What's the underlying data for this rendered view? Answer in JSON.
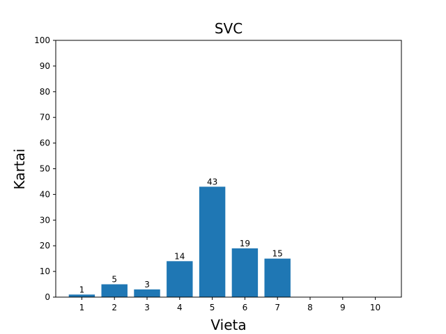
{
  "chart_data": {
    "type": "bar",
    "title": "SVC",
    "xlabel": "Vieta",
    "ylabel": "Kartai",
    "categories": [
      "1",
      "2",
      "3",
      "4",
      "5",
      "6",
      "7",
      "8",
      "9",
      "10"
    ],
    "values": [
      1,
      5,
      3,
      14,
      43,
      19,
      15,
      0,
      0,
      0
    ],
    "data_labels": [
      "1",
      "5",
      "3",
      "14",
      "43",
      "19",
      "15",
      "",
      "",
      ""
    ],
    "ylim": [
      0,
      100
    ],
    "yticks": [
      "0",
      "10",
      "20",
      "30",
      "40",
      "50",
      "60",
      "70",
      "80",
      "90",
      "100"
    ],
    "grid": false,
    "bar_color": "#1f77b4"
  }
}
